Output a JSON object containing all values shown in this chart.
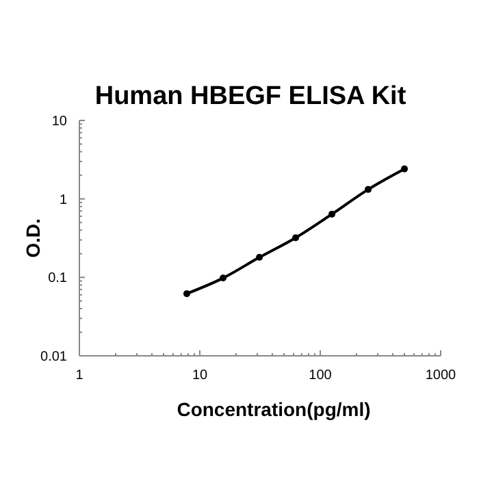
{
  "chart_data": {
    "type": "line",
    "title": "Human HBEGF ELISA Kit",
    "xlabel": "Concentration(pg/ml)",
    "ylabel": "O.D.",
    "log": "xy",
    "xlim": [
      1,
      1000
    ],
    "ylim": [
      0.01,
      10
    ],
    "xticks": [
      1,
      {
        "value": 2,
        "label": null
      },
      {
        "value": 3,
        "label": null
      },
      {
        "value": 4,
        "label": null
      },
      {
        "value": 5,
        "label": null
      },
      {
        "value": 6,
        "label": null
      },
      {
        "value": 7,
        "label": null
      },
      {
        "value": 8,
        "label": null
      },
      {
        "value": 9,
        "label": null
      },
      10,
      {
        "value": 20,
        "label": null
      },
      {
        "value": 30,
        "label": null
      },
      {
        "value": 40,
        "label": null
      },
      {
        "value": 50,
        "label": null
      },
      {
        "value": 60,
        "label": null
      },
      {
        "value": 70,
        "label": null
      },
      {
        "value": 80,
        "label": null
      },
      {
        "value": 90,
        "label": null
      },
      100,
      {
        "value": 200,
        "label": null
      },
      {
        "value": 300,
        "label": null
      },
      {
        "value": 400,
        "label": null
      },
      {
        "value": 500,
        "label": null
      },
      {
        "value": 600,
        "label": null
      },
      {
        "value": 700,
        "label": null
      },
      {
        "value": 800,
        "label": null
      },
      {
        "value": 900,
        "label": null
      },
      1000
    ],
    "yticks": [
      0.01,
      {
        "value": 0.02,
        "label": null
      },
      {
        "value": 0.03,
        "label": null
      },
      {
        "value": 0.04,
        "label": null
      },
      {
        "value": 0.05,
        "label": null
      },
      {
        "value": 0.06,
        "label": null
      },
      {
        "value": 0.07,
        "label": null
      },
      {
        "value": 0.08,
        "label": null
      },
      {
        "value": 0.09,
        "label": null
      },
      0.1,
      {
        "value": 0.2,
        "label": null
      },
      {
        "value": 0.3,
        "label": null
      },
      {
        "value": 0.4,
        "label": null
      },
      {
        "value": 0.5,
        "label": null
      },
      {
        "value": 0.6,
        "label": null
      },
      {
        "value": 0.7,
        "label": null
      },
      {
        "value": 0.8,
        "label": null
      },
      {
        "value": 0.9,
        "label": null
      },
      1,
      {
        "value": 2,
        "label": null
      },
      {
        "value": 3,
        "label": null
      },
      {
        "value": 4,
        "label": null
      },
      {
        "value": 5,
        "label": null
      },
      {
        "value": 6,
        "label": null
      },
      {
        "value": 7,
        "label": null
      },
      {
        "value": 8,
        "label": null
      },
      {
        "value": 9,
        "label": null
      },
      10
    ],
    "x": [
      7.8,
      15.6,
      31.25,
      62.5,
      125,
      250,
      500
    ],
    "series": [
      {
        "color": "#000000",
        "values": [
          0.062,
          0.098,
          0.18,
          0.32,
          0.64,
          1.32,
          2.41
        ]
      }
    ],
    "marker": "circle",
    "line_style": "solid",
    "grid": false
  }
}
